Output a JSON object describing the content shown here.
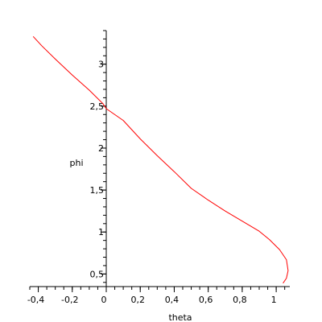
{
  "chart_data": {
    "type": "line",
    "xlabel": "theta",
    "ylabel": "phi",
    "xlim": [
      -0.45,
      1.08
    ],
    "ylim": [
      0.35,
      3.4
    ],
    "x_ticks": [
      -0.4,
      -0.2,
      0,
      0.2,
      0.4,
      0.6,
      0.8,
      1
    ],
    "x_tick_labels": [
      "-0,4",
      "-0,2",
      "0",
      "0,2",
      "0,4",
      "0,6",
      "0,8",
      "1"
    ],
    "y_ticks": [
      0.5,
      1,
      1.5,
      2,
      2.5,
      3
    ],
    "y_tick_labels": [
      "0,5",
      "1",
      "1,5",
      "2",
      "2,5",
      "3"
    ],
    "grid": false,
    "series": [
      {
        "color": "#ff0000",
        "x": [
          -0.43,
          -0.38,
          -0.3,
          -0.2,
          -0.1,
          -0.02,
          0.0,
          0.1,
          0.2,
          0.3,
          0.4,
          0.5,
          0.6,
          0.7,
          0.8,
          0.9,
          0.96,
          1.02,
          1.06,
          1.07,
          1.06,
          1.04
        ],
        "y": [
          3.33,
          3.22,
          3.06,
          2.87,
          2.69,
          2.53,
          2.47,
          2.33,
          2.11,
          1.91,
          1.72,
          1.52,
          1.38,
          1.25,
          1.13,
          1.01,
          0.91,
          0.79,
          0.67,
          0.54,
          0.45,
          0.39
        ]
      }
    ]
  }
}
